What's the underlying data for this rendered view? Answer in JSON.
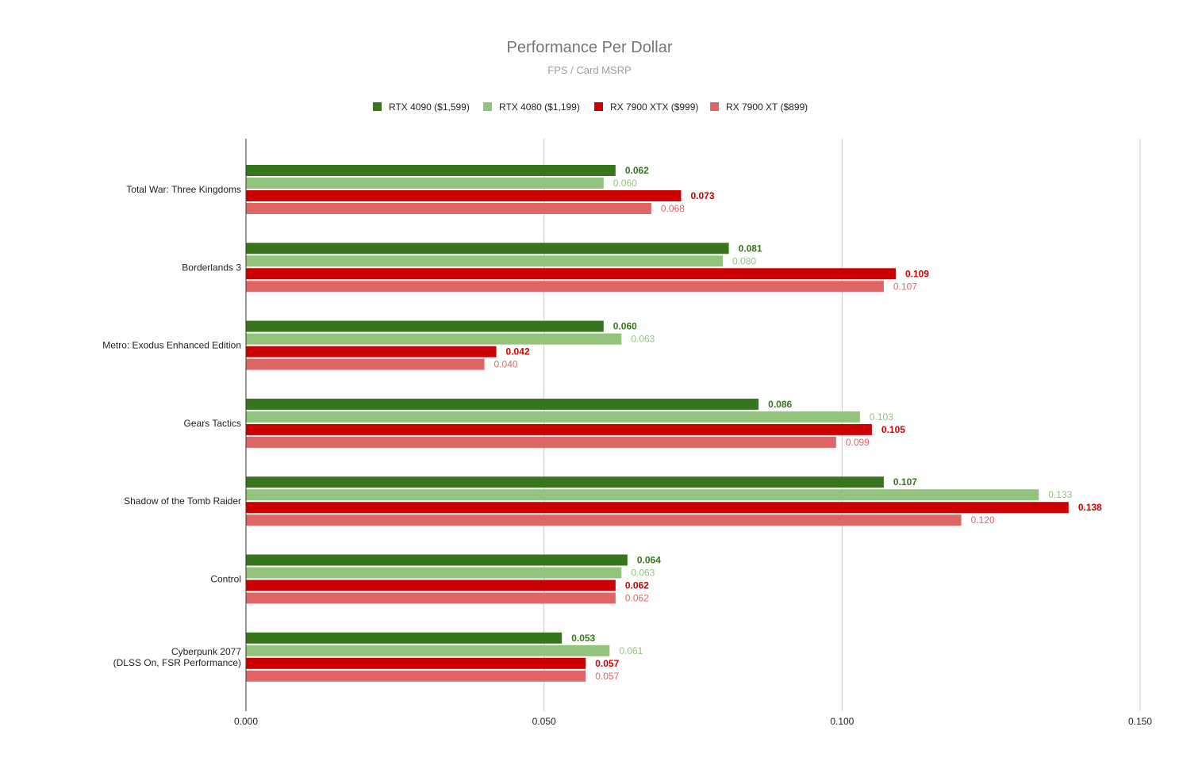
{
  "chart_data": {
    "type": "bar",
    "orientation": "horizontal",
    "title": "Performance Per Dollar",
    "subtitle": "FPS / Card MSRP",
    "xlabel": "",
    "ylabel": "",
    "xlim": [
      0,
      0.15
    ],
    "x_ticks": [
      "0.000",
      "0.050",
      "0.100",
      "0.150"
    ],
    "grid": true,
    "legend_position": "top",
    "categories": [
      [
        "Total War: Three Kingdoms"
      ],
      [
        "Borderlands 3"
      ],
      [
        "Metro: Exodus Enhanced Edition"
      ],
      [
        "Gears Tactics"
      ],
      [
        "Shadow of the Tomb Raider"
      ],
      [
        "Control"
      ],
      [
        "Cyberpunk 2077",
        "(DLSS On, FSR Performance)"
      ]
    ],
    "series": [
      {
        "name": "RTX 4090 ($1,599)",
        "color": "#38761d",
        "label_color": "#38761d",
        "label_weight": "bold",
        "values": [
          0.062,
          0.081,
          0.06,
          0.086,
          0.107,
          0.064,
          0.053
        ],
        "labels": [
          "0.062",
          "0.081",
          "0.060",
          "0.086",
          "0.107",
          "0.064",
          "0.053"
        ]
      },
      {
        "name": "RTX 4080 ($1,199)",
        "color": "#93c47d",
        "label_color": "#93c47d",
        "label_weight": "normal",
        "values": [
          0.06,
          0.08,
          0.063,
          0.103,
          0.133,
          0.063,
          0.061
        ],
        "labels": [
          "0.060",
          "0.080",
          "0.063",
          "0.103",
          "0.133",
          "0.063",
          "0.061"
        ]
      },
      {
        "name": "RX 7900 XTX ($999)",
        "color": "#cc0000",
        "label_color": "#cc0000",
        "label_weight": "bold",
        "values": [
          0.073,
          0.109,
          0.042,
          0.105,
          0.138,
          0.062,
          0.057
        ],
        "labels": [
          "0.073",
          "0.109",
          "0.042",
          "0.105",
          "0.138",
          "0.062",
          "0.057"
        ]
      },
      {
        "name": "RX 7900 XT ($899)",
        "color": "#e06666",
        "label_color": "#e06666",
        "label_weight": "normal",
        "values": [
          0.068,
          0.107,
          0.04,
          0.099,
          0.12,
          0.062,
          0.057
        ],
        "labels": [
          "0.068",
          "0.107",
          "0.040",
          "0.099",
          "0.120",
          "0.062",
          "0.057"
        ]
      }
    ]
  }
}
